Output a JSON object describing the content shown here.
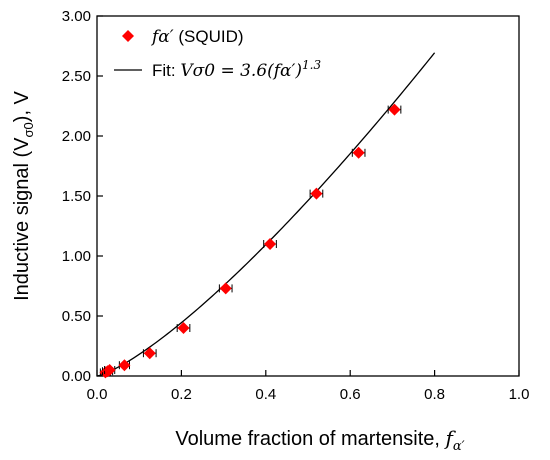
{
  "chart_data": {
    "type": "scatter",
    "xlabel": "Volume fraction of martensite, ",
    "xlabel_symbol": "f",
    "xlabel_symbol_sub": "α′",
    "ylabel": "Inductive signal (V",
    "ylabel_sub": "σ0",
    "ylabel_tail": "), V",
    "xlim": [
      0,
      1
    ],
    "ylim": [
      0,
      3
    ],
    "x_ticks": [
      "0.0",
      "0.2",
      "0.4",
      "0.6",
      "0.8",
      "1.0"
    ],
    "y_ticks": [
      "0.00",
      "0.50",
      "1.00",
      "1.50",
      "2.00",
      "2.50",
      "3.00"
    ],
    "grid": false,
    "legend_position": "top-left",
    "series": [
      {
        "name_symbol": "fα′",
        "name_rest": " (SQUID)",
        "marker": "diamond",
        "color": "#ff0000",
        "x": [
          0.02,
          0.025,
          0.03,
          0.065,
          0.125,
          0.205,
          0.305,
          0.41,
          0.52,
          0.62,
          0.705
        ],
        "y": [
          0.03,
          0.04,
          0.05,
          0.09,
          0.19,
          0.4,
          0.73,
          1.1,
          1.52,
          1.86,
          2.22
        ],
        "x_error": [
          0.012,
          0.012,
          0.012,
          0.012,
          0.015,
          0.015,
          0.015,
          0.015,
          0.015,
          0.015,
          0.015
        ]
      },
      {
        "name_prefix": "Fit: ",
        "name_formula": "Vσ0 = 3.6(fα′)",
        "name_exponent": "1.3",
        "type": "line",
        "color": "#000000",
        "coefficient": 3.6,
        "exponent": 1.3,
        "x_range": [
          0,
          0.8
        ]
      }
    ]
  }
}
